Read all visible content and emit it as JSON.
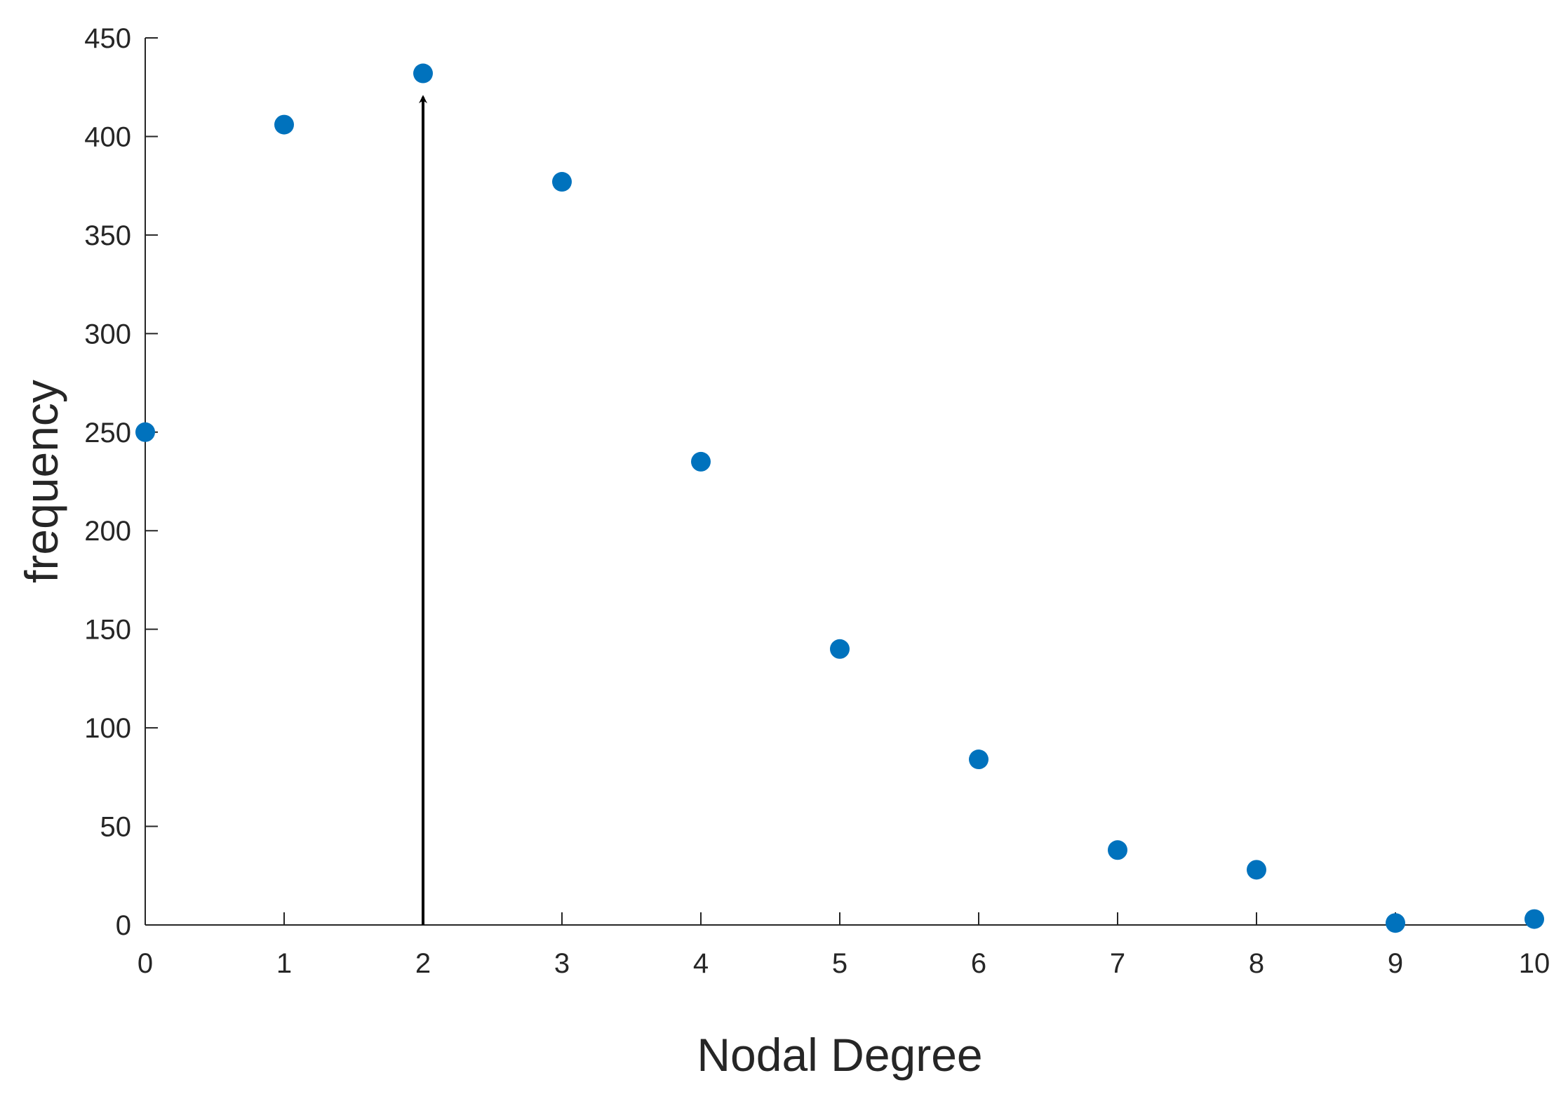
{
  "chart_data": {
    "type": "scatter",
    "title": "",
    "xlabel": "Nodal Degree",
    "ylabel": "frequency",
    "xlim": [
      0,
      10
    ],
    "ylim": [
      0,
      450
    ],
    "xticks": [
      0,
      1,
      2,
      3,
      4,
      5,
      6,
      7,
      8,
      9,
      10
    ],
    "yticks": [
      0,
      50,
      100,
      150,
      200,
      250,
      300,
      350,
      400,
      450
    ],
    "grid": false,
    "legend": "none",
    "series": [
      {
        "color": "#0072bd",
        "points": [
          {
            "x": 0,
            "y": 250
          },
          {
            "x": 1,
            "y": 406
          },
          {
            "x": 2,
            "y": 432
          },
          {
            "x": 3,
            "y": 377
          },
          {
            "x": 4,
            "y": 235
          },
          {
            "x": 5,
            "y": 140
          },
          {
            "x": 6,
            "y": 84
          },
          {
            "x": 7,
            "y": 38
          },
          {
            "x": 8,
            "y": 28
          },
          {
            "x": 9,
            "y": 1
          },
          {
            "x": 10,
            "y": 3
          }
        ]
      }
    ],
    "annotations": [
      {
        "type": "arrow",
        "from": {
          "x": 2,
          "y": 0
        },
        "to": {
          "x": 2,
          "y": 420
        },
        "color": "#000000"
      }
    ]
  }
}
